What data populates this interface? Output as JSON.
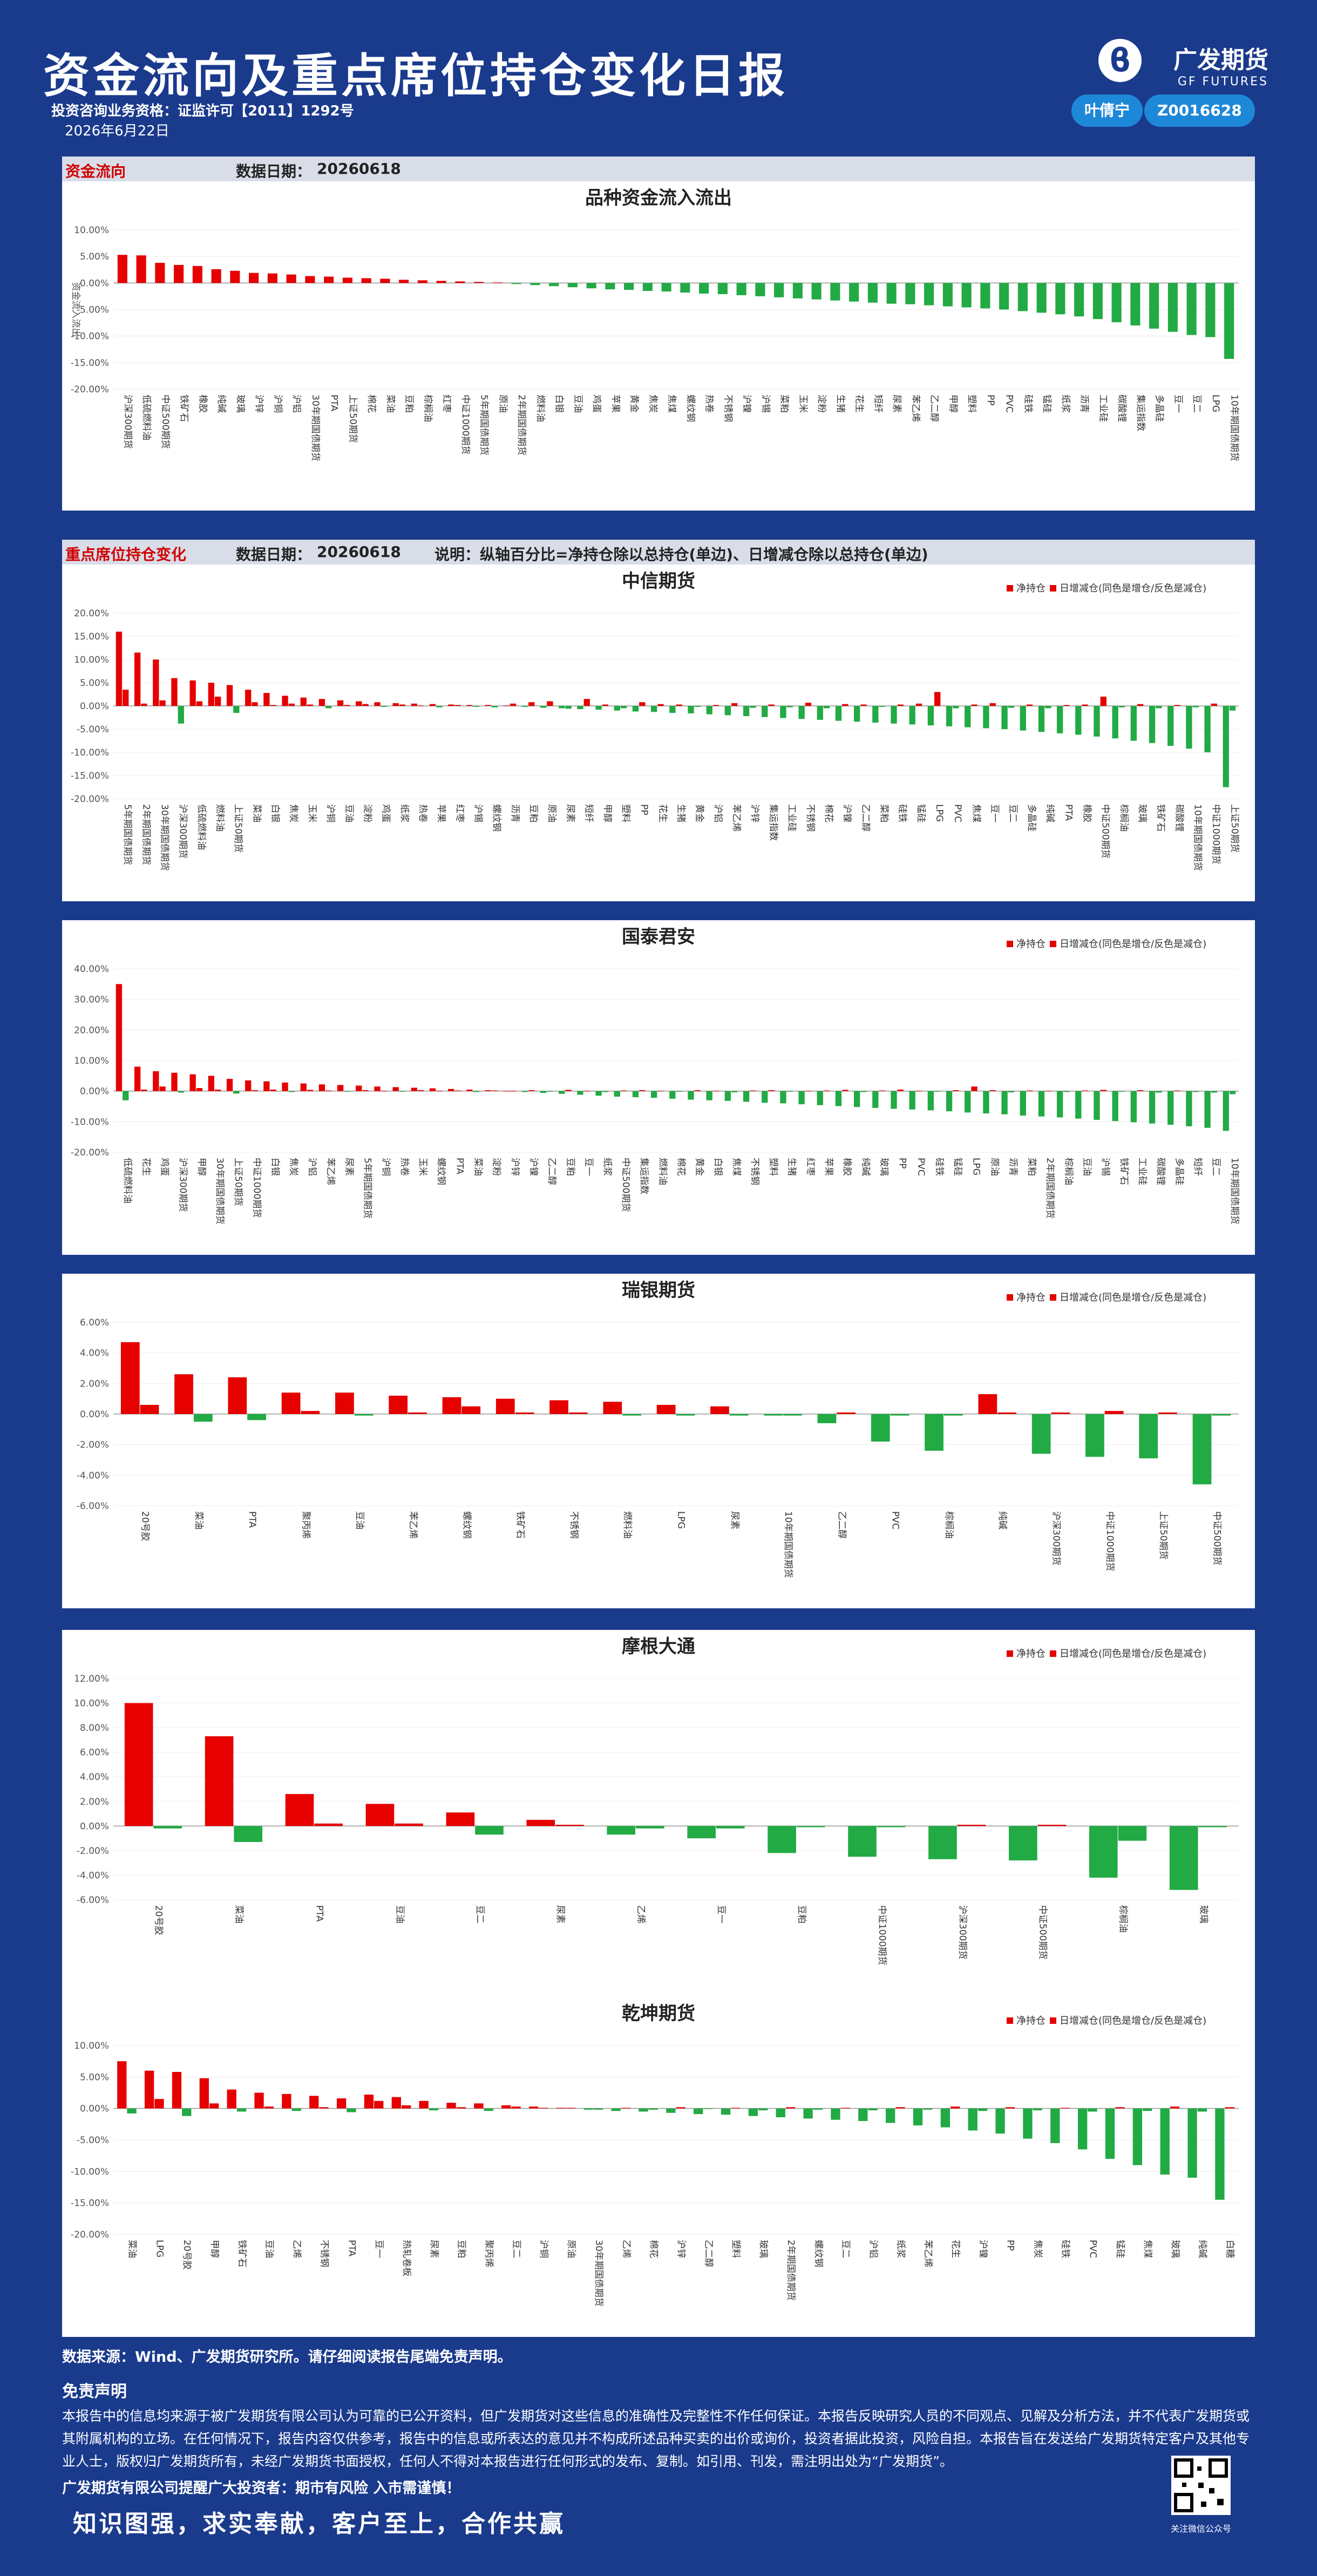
{
  "header": {
    "title": "资金流向及重点席位持仓变化日报",
    "license": "投资咨询业务资格：证监许可【2011】1292号",
    "date": "2026年6月22日",
    "brand_cn": "广发期货",
    "brand_en": "GF FUTURES",
    "analyst": "叶倩宁",
    "cert_no": "Z0016628"
  },
  "colors": {
    "background": "#1a3a8c",
    "positive": "#e60000",
    "negative": "#22aa44",
    "badge": "#1e88d8"
  },
  "sections": {
    "fund_flow": {
      "label": "资金流向",
      "date_label": "数据日期：",
      "date": "20260618"
    },
    "positions": {
      "label": "重点席位持仓变化",
      "date_label": "数据日期：",
      "date": "20260618",
      "note": "说明：纵轴百分比=净持仓除以总持仓(单边)、日增减仓除以总持仓(单边)"
    }
  },
  "footer": {
    "source": "数据来源：Wind、广发期货研究所。请仔细阅读报告尾端免责声明。",
    "disclaimer_title": "免责声明",
    "disclaimer_text": "本报告中的信息均来源于被广发期货有限公司认为可靠的已公开资料，但广发期货对这些信息的准确性及完整性不作任何保证。本报告反映研究人员的不同观点、见解及分析方法，并不代表广发期货或其附属机构的立场。在任何情况下，报告内容仅供参考，报告中的信息或所表达的意见并不构成所述品种买卖的出价或询价，投资者据此投资，风险自担。本报告旨在发送给广发期货特定客户及其他专业人士，版权归广发期货所有，未经广发期货书面授权，任何人不得对本报告进行任何形式的发布、复制。如引用、刊发，需注明出处为“广发期货”。",
    "risk": "广发期货有限公司提醒广大投资者：期市有风险 入市需谨慎！",
    "slogan": "知识图强，求实奉献，客户至上，合作共赢",
    "qr_caption": "关注微信公众号"
  },
  "chart_data": [
    {
      "type": "bar",
      "title": "品种资金流入流出",
      "ylabel": "资金流入流出",
      "ylim": [
        -20,
        10
      ],
      "yticks": [
        "10.00%",
        "5.00%",
        "0.00%",
        "-5.00%",
        "-10.00%",
        "-15.00%",
        "-20.00%"
      ],
      "categories": [
        "沪深300期货",
        "低硫燃料油",
        "中证500期货",
        "铁矿石",
        "橡胶",
        "纯碱",
        "玻璃",
        "沪锌",
        "沪铜",
        "沪铝",
        "30年期国债期货",
        "PTA",
        "上证50期货",
        "棉花",
        "菜油",
        "豆粕",
        "棕榈油",
        "红枣",
        "中证1000期货",
        "5年期国债期货",
        "原油",
        "2年期国债期货",
        "燃料油",
        "白银",
        "豆油",
        "鸡蛋",
        "苹果",
        "黄金",
        "焦炭",
        "焦煤",
        "螺纹钢",
        "热卷",
        "不锈钢",
        "沪镍",
        "沪锡",
        "菜粕",
        "玉米",
        "淀粉",
        "生猪",
        "花生",
        "短纤",
        "尿素",
        "苯乙烯",
        "乙二醇",
        "甲醇",
        "塑料",
        "PP",
        "PVC",
        "硅铁",
        "锰硅",
        "纸浆",
        "沥青",
        "工业硅",
        "碳酸锂",
        "集运指数",
        "多晶硅",
        "豆一",
        "豆二",
        "LPG",
        "10年期国债期货"
      ],
      "values": [
        5.3,
        5.2,
        3.8,
        3.4,
        3.2,
        2.6,
        2.3,
        1.9,
        1.8,
        1.6,
        1.3,
        1.2,
        1.0,
        0.9,
        0.8,
        0.6,
        0.5,
        0.4,
        0.3,
        0.2,
        0.1,
        -0.2,
        -0.4,
        -0.6,
        -0.8,
        -1.0,
        -1.2,
        -1.3,
        -1.5,
        -1.6,
        -1.8,
        -2.0,
        -2.1,
        -2.3,
        -2.5,
        -2.7,
        -2.9,
        -3.1,
        -3.3,
        -3.5,
        -3.7,
        -3.9,
        -4.0,
        -4.2,
        -4.4,
        -4.6,
        -4.8,
        -5.0,
        -5.3,
        -5.6,
        -5.9,
        -6.3,
        -6.8,
        -7.4,
        -8.0,
        -8.6,
        -9.2,
        -9.8,
        -10.2,
        -14.3
      ]
    },
    {
      "type": "bar",
      "title": "中信期货",
      "legend": [
        "净持仓",
        "日增减仓(同色是增仓/反色是减仓)"
      ],
      "ylim": [
        -20,
        20
      ],
      "yticks": [
        "20.00%",
        "15.00%",
        "10.00%",
        "5.00%",
        "0.00%",
        "-5.00%",
        "-10.00%",
        "-15.00%",
        "-20.00%"
      ],
      "categories": [
        "5年期国债期货",
        "2年期国债期货",
        "30年期国债期货",
        "沪深300期货",
        "低硫燃料油",
        "燃料油",
        "上证50期货",
        "菜油",
        "白银",
        "焦炭",
        "玉米",
        "沪铜",
        "豆油",
        "淀粉",
        "鸡蛋",
        "纸浆",
        "热卷",
        "苹果",
        "红枣",
        "沪锡",
        "螺纹钢",
        "沥青",
        "豆粕",
        "原油",
        "尿素",
        "短纤",
        "甲醇",
        "塑料",
        "PP",
        "花生",
        "生猪",
        "黄金",
        "沪铝",
        "苯乙烯",
        "沪锌",
        "集运指数",
        "工业硅",
        "不锈钢",
        "棉花",
        "沪镍",
        "乙二醇",
        "菜粕",
        "硅铁",
        "锰硅",
        "LPG",
        "PVC",
        "焦煤",
        "豆一",
        "豆二",
        "多晶硅",
        "纯碱",
        "PTA",
        "橡胶",
        "中证500期货",
        "棕榈油",
        "玻璃",
        "铁矿石",
        "碳酸锂",
        "10年期国债期货",
        "中证1000期货",
        "上证50期货"
      ],
      "series": [
        {
          "name": "净持仓",
          "values": [
            16.0,
            11.5,
            10.0,
            6.0,
            5.5,
            5.0,
            4.5,
            3.5,
            2.8,
            2.2,
            1.8,
            1.5,
            1.2,
            1.0,
            0.8,
            0.6,
            0.5,
            0.4,
            0.3,
            0.2,
            0.2,
            0.1,
            -0.2,
            -0.4,
            -0.5,
            -0.7,
            -0.8,
            -1.0,
            -1.2,
            -1.3,
            -1.5,
            -1.6,
            -1.8,
            -2.0,
            -2.2,
            -2.4,
            -2.6,
            -2.8,
            -3.0,
            -3.2,
            -3.4,
            -3.6,
            -3.8,
            -4.0,
            -4.2,
            -4.4,
            -4.6,
            -4.8,
            -5.0,
            -5.3,
            -5.6,
            -5.9,
            -6.2,
            -6.6,
            -7.0,
            -7.5,
            -8.0,
            -8.6,
            -9.2,
            -10.0,
            -17.5
          ]
        },
        {
          "name": "日增减仓",
          "values": [
            3.5,
            0.5,
            1.2,
            -3.8,
            1.0,
            2.0,
            -1.5,
            0.8,
            0.2,
            0.5,
            0.3,
            -0.5,
            0.2,
            0.4,
            -0.2,
            0.3,
            0.1,
            -0.3,
            0.2,
            -0.2,
            -0.3,
            0.5,
            0.8,
            1.0,
            -0.6,
            1.5,
            0.3,
            -0.5,
            0.8,
            0.4,
            0.3,
            -0.2,
            0.2,
            0.6,
            -0.4,
            0.3,
            -0.3,
            0.7,
            -0.5,
            0.4,
            0.3,
            -0.2,
            0.3,
            0.5,
            3.0,
            -0.5,
            0.3,
            0.6,
            -0.4,
            0.3,
            -0.5,
            0.2,
            0.3,
            2.0,
            -0.3,
            0.4,
            -0.5,
            0.2,
            -0.3,
            0.5,
            -1.0
          ]
        }
      ]
    },
    {
      "type": "bar",
      "title": "国泰君安",
      "legend": [
        "净持仓",
        "日增减仓(同色是增仓/反色是减仓)"
      ],
      "ylim": [
        -20,
        40
      ],
      "yticks": [
        "40.00%",
        "30.00%",
        "20.00%",
        "10.00%",
        "0.00%",
        "-10.00%",
        "-20.00%"
      ],
      "categories": [
        "低硫燃料油",
        "花生",
        "鸡蛋",
        "沪深300期货",
        "甲醇",
        "30年期国债期货",
        "上证50期货",
        "中证1000期货",
        "白银",
        "焦炭",
        "沪铝",
        "苯乙烯",
        "尿素",
        "5年期国债期货",
        "沪铜",
        "热卷",
        "玉米",
        "螺纹钢",
        "PTA",
        "菜油",
        "淀粉",
        "沪锌",
        "沪镍",
        "乙二醇",
        "豆粕",
        "豆一",
        "纸浆",
        "中证500期货",
        "集运指数",
        "燃料油",
        "棉花",
        "黄金",
        "白银",
        "焦煤",
        "不锈钢",
        "塑料",
        "生猪",
        "红枣",
        "苹果",
        "橡胶",
        "纯碱",
        "玻璃",
        "PP",
        "PVC",
        "硅铁",
        "锰硅",
        "LPG",
        "原油",
        "沥青",
        "菜粕",
        "2年期国债期货",
        "棕榈油",
        "豆油",
        "沪锡",
        "铁矿石",
        "工业硅",
        "碳酸锂",
        "多晶硅",
        "短纤",
        "豆二",
        "10年期国债期货"
      ],
      "series": [
        {
          "name": "净持仓",
          "values": [
            35.0,
            8.0,
            6.5,
            6.0,
            5.5,
            5.0,
            4.0,
            3.5,
            3.2,
            2.8,
            2.5,
            2.2,
            2.0,
            1.8,
            1.5,
            1.3,
            1.1,
            0.9,
            0.7,
            0.5,
            0.3,
            0.1,
            -0.3,
            -0.6,
            -0.9,
            -1.2,
            -1.5,
            -1.8,
            -2.0,
            -2.2,
            -2.5,
            -2.8,
            -3.0,
            -3.2,
            -3.5,
            -3.8,
            -4.0,
            -4.3,
            -4.6,
            -4.9,
            -5.2,
            -5.5,
            -5.8,
            -6.0,
            -6.3,
            -6.6,
            -7.0,
            -7.3,
            -7.6,
            -8.0,
            -8.3,
            -8.6,
            -9.0,
            -9.4,
            -9.8,
            -10.2,
            -10.6,
            -11.0,
            -11.5,
            -12.0,
            -13.0
          ]
        },
        {
          "name": "日增减仓",
          "values": [
            -3.0,
            0.5,
            1.5,
            -0.5,
            1.0,
            0.5,
            -0.8,
            0.3,
            0.5,
            -0.3,
            0.4,
            0.2,
            -0.2,
            0.3,
            0.1,
            -0.2,
            0.3,
            0.1,
            0.2,
            -0.3,
            0.2,
            0.1,
            0.3,
            -0.2,
            0.4,
            0.1,
            -0.3,
            0.2,
            0.3,
            0.1,
            -0.2,
            0.3,
            0.1,
            -0.4,
            0.2,
            0.3,
            -0.2,
            0.1,
            0.2,
            0.4,
            -0.3,
            0.2,
            0.5,
            0.1,
            -0.2,
            0.3,
            1.5,
            0.3,
            -0.4,
            0.2,
            0.1,
            -0.3,
            0.2,
            0.4,
            -0.2,
            0.3,
            -0.5,
            0.2,
            -0.3,
            -0.5,
            -1.0
          ]
        }
      ]
    },
    {
      "type": "bar",
      "title": "瑞银期货",
      "legend": [
        "净持仓",
        "日增减仓(同色是增仓/反色是减仓)"
      ],
      "ylim": [
        -6,
        6
      ],
      "yticks": [
        "6.00%",
        "4.00%",
        "2.00%",
        "0.00%",
        "-2.00%",
        "-4.00%",
        "-6.00%"
      ],
      "categories": [
        "20号胶",
        "菜油",
        "PTA",
        "聚丙烯",
        "豆油",
        "苯乙烯",
        "螺纹钢",
        "铁矿石",
        "不锈钢",
        "燃料油",
        "LPG",
        "尿素",
        "10年期国债期货",
        "乙二醇",
        "PVC",
        "棕榈油",
        "纯碱",
        "沪深300期货",
        "中证1000期货",
        "上证50期货",
        "中证500期货"
      ],
      "series": [
        {
          "name": "净持仓",
          "values": [
            4.7,
            2.6,
            2.4,
            1.4,
            1.4,
            1.2,
            1.1,
            1.0,
            0.9,
            0.8,
            0.6,
            0.5,
            -0.1,
            -0.6,
            -1.8,
            -2.4,
            1.3,
            -2.6,
            -2.8,
            -2.9,
            -4.6
          ]
        },
        {
          "name": "日增减仓",
          "values": [
            0.6,
            -0.5,
            -0.4,
            0.2,
            -0.1,
            0.1,
            0.5,
            0.1,
            0.1,
            -0.1,
            -0.1,
            -0.1,
            -0.1,
            0.1,
            -0.1,
            -0.1,
            0.1,
            0.1,
            0.2,
            0.1,
            -0.1
          ]
        }
      ]
    },
    {
      "type": "bar",
      "title": "摩根大通",
      "legend": [
        "净持仓",
        "日增减仓(同色是增仓/反色是减仓)"
      ],
      "ylim": [
        -6,
        12
      ],
      "yticks": [
        "12.00%",
        "10.00%",
        "8.00%",
        "6.00%",
        "4.00%",
        "2.00%",
        "0.00%",
        "-2.00%",
        "-4.00%",
        "-6.00%"
      ],
      "categories": [
        "20号胶",
        "菜油",
        "PTA",
        "豆油",
        "豆二",
        "尿素",
        "乙烯",
        "豆一",
        "豆粕",
        "中证1000期货",
        "沪深300期货",
        "中证500期货",
        "棕榈油",
        "玻璃"
      ],
      "series": [
        {
          "name": "净持仓",
          "values": [
            10.0,
            7.3,
            2.6,
            1.8,
            1.1,
            0.5,
            -0.7,
            -1.0,
            -2.2,
            -2.5,
            -2.7,
            -2.8,
            -4.2,
            -5.2
          ]
        },
        {
          "name": "日增减仓",
          "values": [
            -0.2,
            -1.3,
            0.2,
            0.2,
            -0.7,
            0.1,
            -0.2,
            -0.2,
            -0.1,
            -0.1,
            0.1,
            0.1,
            -1.2,
            -0.1
          ]
        }
      ]
    },
    {
      "type": "bar",
      "title": "乾坤期货",
      "legend": [
        "净持仓",
        "日增减仓(同色是增仓/反色是减仓)"
      ],
      "ylim": [
        -20,
        10
      ],
      "yticks": [
        "10.00%",
        "5.00%",
        "0.00%",
        "-5.00%",
        "-10.00%",
        "-15.00%",
        "-20.00%"
      ],
      "categories": [
        "菜油",
        "LPG",
        "20号胶",
        "甲醇",
        "铁矿石",
        "豆油",
        "乙烯",
        "不锈钢",
        "PTA",
        "豆一",
        "热轧卷板",
        "尿素",
        "豆粕",
        "聚丙烯",
        "豆二",
        "沪铜",
        "原油",
        "30年期国债期货",
        "乙烯",
        "棉花",
        "沪锌",
        "乙二醇",
        "塑料",
        "玻璃",
        "2年期国债期货",
        "螺纹钢",
        "豆二",
        "沪铝",
        "纸浆",
        "苯乙烯",
        "花生",
        "沪镍",
        "PP",
        "焦炭",
        "硅铁",
        "PVC",
        "锰硅",
        "焦煤",
        "玻璃",
        "纯碱",
        "白糖"
      ],
      "series": [
        {
          "name": "净持仓",
          "values": [
            7.5,
            6.0,
            5.8,
            4.8,
            3.0,
            2.5,
            2.3,
            2.0,
            1.6,
            2.2,
            1.8,
            1.2,
            0.9,
            0.8,
            0.5,
            0.3,
            0.1,
            -0.2,
            -0.4,
            -0.5,
            -0.7,
            -0.9,
            -1.0,
            -1.2,
            -1.4,
            -1.6,
            -1.8,
            -2.0,
            -2.3,
            -2.7,
            -3.0,
            -3.5,
            -4.0,
            -4.8,
            -5.5,
            -6.5,
            -8.0,
            -9.0,
            -10.5,
            -11.0,
            -14.5
          ]
        },
        {
          "name": "日增减仓",
          "values": [
            -0.8,
            1.5,
            -1.2,
            0.8,
            -0.5,
            0.3,
            -0.4,
            0.2,
            -0.6,
            1.2,
            0.5,
            -0.3,
            0.2,
            -0.4,
            0.3,
            0.1,
            0.1,
            -0.2,
            0.1,
            -0.2,
            0.2,
            -0.1,
            0.1,
            -0.3,
            0.2,
            -0.2,
            0.1,
            -0.3,
            0.2,
            -0.2,
            0.3,
            -0.4,
            0.2,
            -0.3,
            0.1,
            -0.5,
            0.2,
            -0.4,
            0.3,
            -0.5,
            0.2
          ]
        }
      ]
    }
  ]
}
